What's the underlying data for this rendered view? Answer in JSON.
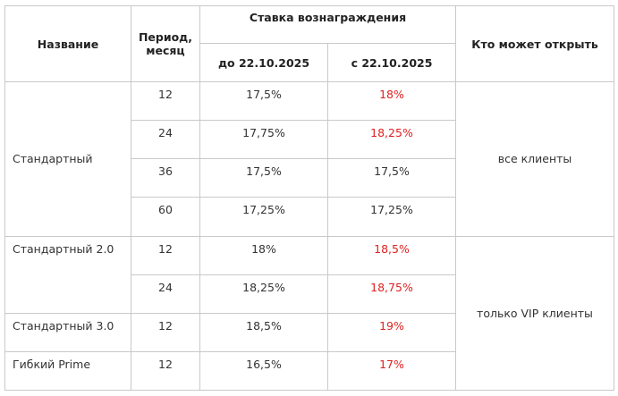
{
  "header": {
    "name": "Название",
    "period_line1": "Период,",
    "period_line2": "месяц",
    "rate_group": "Ставка вознаграждения",
    "rate_before": "до 22.10.2025",
    "rate_after": "с 22.10.2025",
    "who": "Кто может открыть"
  },
  "rows": [
    {
      "name": "Стандартный",
      "period": "12",
      "before": "17,5%",
      "after": "18%"
    },
    {
      "period": "24",
      "before": "17,75%",
      "after": "18,25%"
    },
    {
      "period": "36",
      "before": "17,5%",
      "after": "17,5%"
    },
    {
      "period": "60",
      "before": "17,25%",
      "after": "17,25%"
    },
    {
      "name": "Стандартный 2.0",
      "period": "12",
      "before": "18%",
      "after": "18,5%"
    },
    {
      "period": "24",
      "before": "18,25%",
      "after": "18,75%"
    },
    {
      "name": "Стандартный 3.0",
      "period": "12",
      "before": "18,5%",
      "after": "19%"
    },
    {
      "name": "Гибкий Prime",
      "period": "12",
      "before": "16,5%",
      "after": "17%"
    }
  ],
  "who": {
    "all": "все клиенты",
    "vip": "только VIP клиенты"
  },
  "colors": {
    "highlight": "#e02020",
    "border": "#c9c9c9",
    "text": "#333333"
  }
}
